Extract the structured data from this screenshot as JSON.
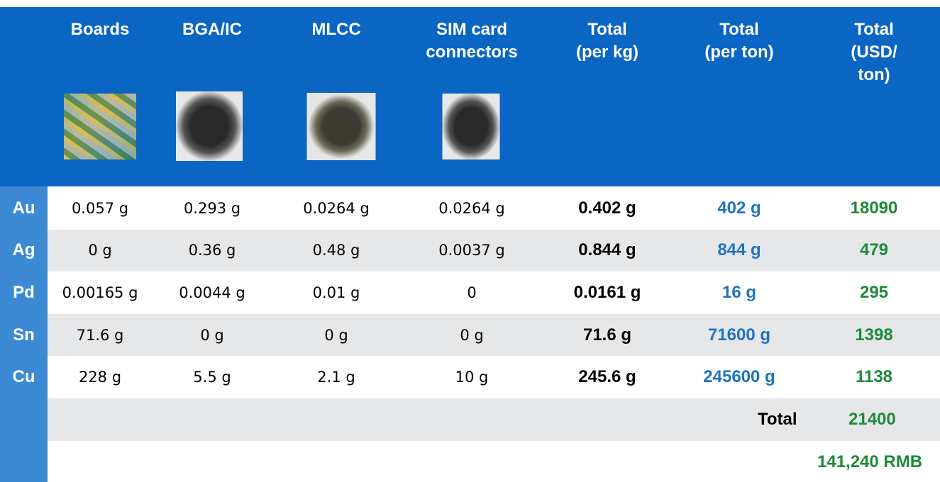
{
  "headers": {
    "boards": "Boards",
    "bga_ic": "BGA/IC",
    "mlcc": "MLCC",
    "sim": "SIM card\nconnectors",
    "total_kg": "Total\n(per kg)",
    "total_ton": "Total\n(per ton)",
    "total_usd": "Total\n(USD/\nton)"
  },
  "images": {
    "boards": "boards-photo",
    "bga_ic": "bga-ic-photo",
    "mlcc": "mlcc-photo",
    "sim": "sim-connectors-photo"
  },
  "rows": [
    {
      "element": "Au",
      "boards": "0.057 g",
      "bga_ic": "0.293 g",
      "mlcc": "0.0264 g",
      "sim": "0.0264 g",
      "total_kg": "0.402 g",
      "total_ton": "402 g",
      "usd": "18090"
    },
    {
      "element": "Ag",
      "boards": "0 g",
      "bga_ic": "0.36 g",
      "mlcc": "0.48 g",
      "sim": "0.0037 g",
      "total_kg": "0.844 g",
      "total_ton": "844 g",
      "usd": "479"
    },
    {
      "element": "Pd",
      "boards": "0.00165 g",
      "bga_ic": "0.0044 g",
      "mlcc": "0.01 g",
      "sim": "0",
      "total_kg": "0.0161 g",
      "total_ton": "16 g",
      "usd": "295"
    },
    {
      "element": "Sn",
      "boards": "71.6 g",
      "bga_ic": "0 g",
      "mlcc": "0 g",
      "sim": "0 g",
      "total_kg": "71.6 g",
      "total_ton": "71600 g",
      "usd": "1398"
    },
    {
      "element": "Cu",
      "boards": "228 g",
      "bga_ic": "5.5 g",
      "mlcc": "2.1 g",
      "sim": "10 g",
      "total_kg": "245.6 g",
      "total_ton": "245600 g",
      "usd": "1138"
    }
  ],
  "summary": {
    "total_label": "Total",
    "total_value": "21400",
    "rmb_value": "141,240 RMB"
  },
  "colors": {
    "header_blue": "#0a66c2",
    "sidebar_blue": "#3c8ad4",
    "value_blue": "#1f73c2",
    "value_green": "#1e8a3a",
    "row_gray": "#e6e7e9"
  }
}
